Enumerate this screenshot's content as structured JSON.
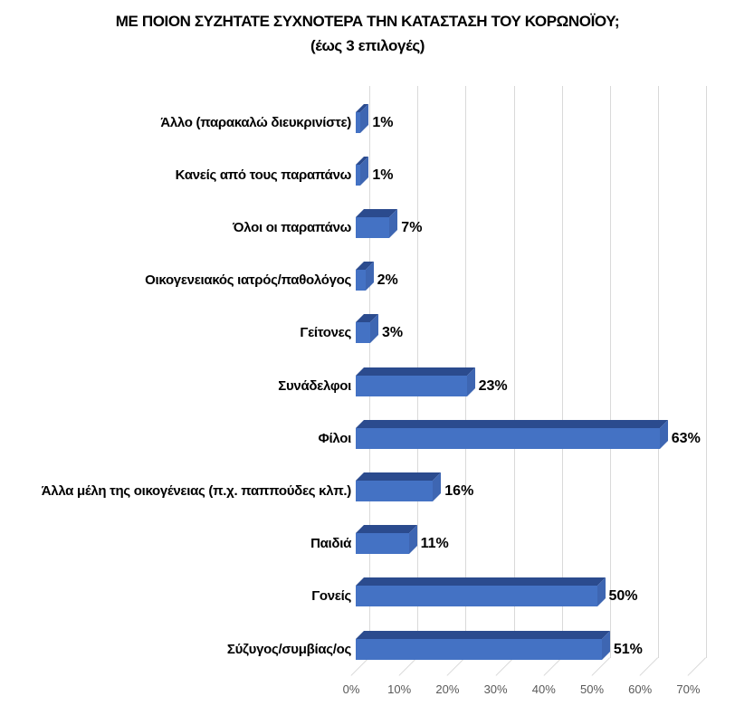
{
  "title": {
    "line1": "ΜΕ ΠΟΙΟΝ ΣΥΖΗΤΑΤΕ ΣΥΧΝΟΤΕΡΑ ΤΗΝ ΚΑΤΑΣΤΑΣΗ ΤΟΥ ΚΟΡΩΝΟΪΟΥ;",
    "line2": "(έως 3 επιλογές)"
  },
  "chart_data": {
    "type": "bar",
    "orientation": "horizontal",
    "style": "3d",
    "title": "ΜΕ ΠΟΙΟΝ ΣΥΖΗΤΑΤΕ ΣΥΧΝΟΤΕΡΑ ΤΗΝ ΚΑΤΑΣΤΑΣΗ ΤΟΥ ΚΟΡΩΝΟΪΟΥ;",
    "subtitle": "(έως 3 επιλογές)",
    "categories": [
      "Άλλο (παρακαλώ διευκρινίστε)",
      "Κανείς από τους παραπάνω",
      "Όλοι οι παραπάνω",
      "Οικογενειακός ιατρός/παθολόγος",
      "Γείτονες",
      "Συνάδελφοι",
      "Φίλοι",
      "Άλλα μέλη της οικογένειας (π.χ. παππούδες κλπ.)",
      "Παιδιά",
      "Γονείς",
      "Σύζυγος/συμβίας/ος"
    ],
    "values": [
      1,
      1,
      7,
      2,
      3,
      23,
      63,
      16,
      11,
      50,
      51
    ],
    "value_labels": [
      "1%",
      "1%",
      "7%",
      "2%",
      "3%",
      "23%",
      "63%",
      "16%",
      "11%",
      "50%",
      "51%"
    ],
    "xlabel": "",
    "ylabel": "",
    "xlim": [
      0,
      70
    ],
    "x_ticks": [
      "0%",
      "10%",
      "20%",
      "30%",
      "40%",
      "50%",
      "60%",
      "70%"
    ],
    "grid": true,
    "legend": "none",
    "colors": {
      "bar_front": "#4472C4",
      "bar_top": "#2B4B8E",
      "bar_side": "#3E66B2",
      "gridline": "#D9D9D9",
      "tick_text": "#595959",
      "label_text": "#000000",
      "background": "#FFFFFF"
    }
  }
}
